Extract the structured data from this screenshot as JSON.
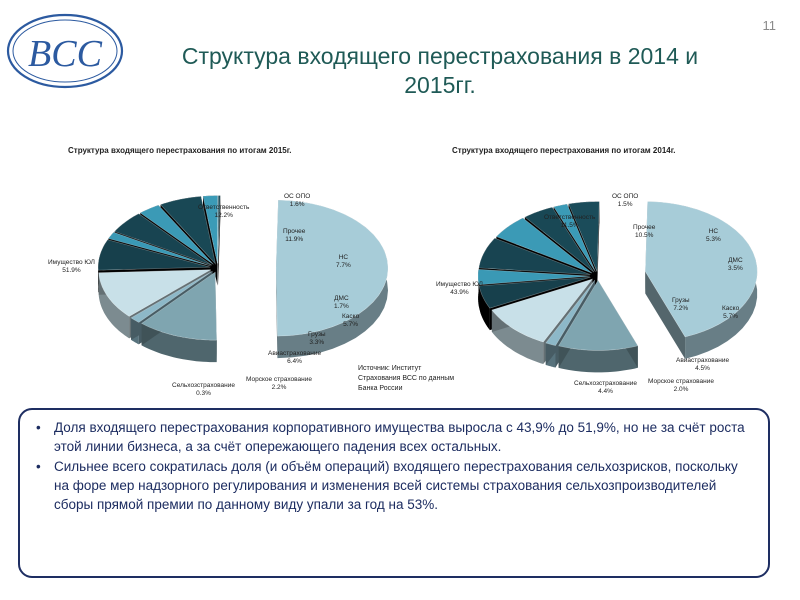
{
  "logo": {
    "text": "BCC"
  },
  "page_number": "11",
  "title_line1": "Структура входящего перестрахования в 2014 и",
  "title_line2": "2015гг.",
  "source": {
    "line1": "Источник: Институт",
    "line2": "Страхования ВСС по данным",
    "line3": "Банка России"
  },
  "bullets": [
    "Доля входящего перестрахования корпоративного имущества выросла с 43,9% до 51,9%, но не за счёт роста этой линии бизнеса, а за счёт опережающего падения всех остальных.",
    "Сильнее всего сократилась доля (и объём операций) входящего перестрахования сельхозрисков, поскольку на форе мер надзорного регулирования и изменения всей системы страхования сельхозпроизводителей сборы прямой премии по данному виду упали за год на 53%."
  ],
  "colors": {
    "light": "#a7ccd8",
    "mid": "#3a98b4",
    "dark": "#17404c",
    "accent": "#1f5a56"
  },
  "chart_data": [
    {
      "type": "pie",
      "title": "Структура входящего перестрахования по итогам 2015г.",
      "slices": [
        {
          "label": "Имущество ЮЛ",
          "value": "51.9%",
          "v": 51.9
        },
        {
          "label": "Ответственность",
          "value": "12.2%",
          "v": 12.2
        },
        {
          "label": "ОС ОПО",
          "value": "1.6%",
          "v": 1.6
        },
        {
          "label": "Прочее",
          "value": "11.9%",
          "v": 11.9
        },
        {
          "label": "НС",
          "value": "7.7%",
          "v": 7.7
        },
        {
          "label": "ДМС",
          "value": "1.7%",
          "v": 1.7
        },
        {
          "label": "Каско",
          "value": "5.7%",
          "v": 5.7
        },
        {
          "label": "Грузы",
          "value": "3.3%",
          "v": 3.3
        },
        {
          "label": "Авиастрахование",
          "value": "6.4%",
          "v": 6.4
        },
        {
          "label": "Морское страхование",
          "value": "2.2%",
          "v": 2.2
        },
        {
          "label": "Сельхозстрахование",
          "value": "0.3%",
          "v": 0.3
        }
      ]
    },
    {
      "type": "pie",
      "title": "Структура входящего перестрахования по итогам 2014г.",
      "slices": [
        {
          "label": "Имущество ЮЛ",
          "value": "43.9%",
          "v": 43.9
        },
        {
          "label": "Ответственность",
          "value": "11.5%",
          "v": 11.5
        },
        {
          "label": "ОС ОПО",
          "value": "1.5%",
          "v": 1.5
        },
        {
          "label": "Прочее",
          "value": "10.5%",
          "v": 10.5
        },
        {
          "label": "НС",
          "value": "5.3%",
          "v": 5.3
        },
        {
          "label": "ДМС",
          "value": "3.5%",
          "v": 3.5
        },
        {
          "label": "Грузы",
          "value": "7.2%",
          "v": 7.2
        },
        {
          "label": "Каско",
          "value": "5.7%",
          "v": 5.7
        },
        {
          "label": "Авиастрахование",
          "value": "4.5%",
          "v": 4.5
        },
        {
          "label": "Морское страхование",
          "value": "2.0%",
          "v": 2.0
        },
        {
          "label": "Сельхозстрахование",
          "value": "4.4%",
          "v": 4.4
        }
      ]
    }
  ]
}
